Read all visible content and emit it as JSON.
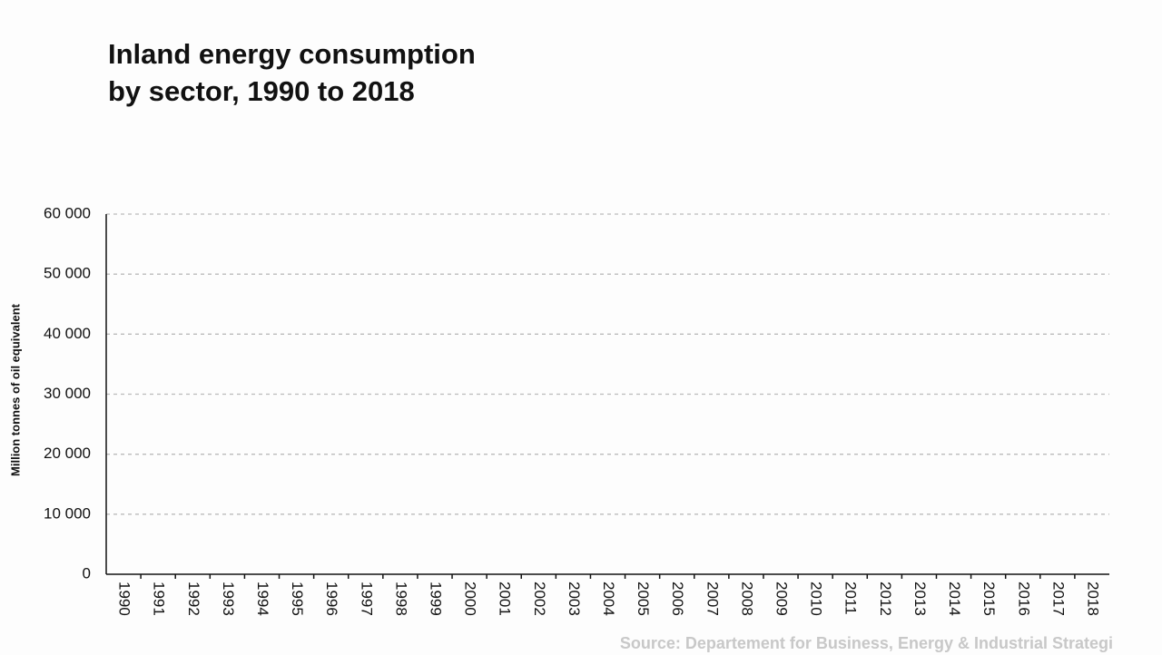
{
  "chart_data": {
    "type": "line",
    "title": [
      "Inland energy consumption",
      "by sector, 1990 to 2018"
    ],
    "y_label": "Million tonnes of oil equivalent",
    "source": "Source: Departement for Business, Energy & Industrial Strategi",
    "categories": [
      "1990",
      "1991",
      "1992",
      "1993",
      "1994",
      "1995",
      "1996",
      "1997",
      "1998",
      "1999",
      "2000",
      "2001",
      "2002",
      "2003",
      "2004",
      "2005",
      "2006",
      "2007",
      "2008",
      "2009",
      "2010",
      "2011",
      "2012",
      "2013",
      "2014",
      "2015",
      "2016",
      "2017",
      "2018"
    ],
    "ylim": [
      0,
      60000
    ],
    "yticks": [
      0,
      {
        "value": 10000,
        "label": "10 000"
      },
      {
        "value": 20000,
        "label": "20 000"
      },
      {
        "value": 30000,
        "label": "30 000"
      },
      {
        "value": 40000,
        "label": "40 000"
      },
      {
        "value": 50000,
        "label": "50 000"
      },
      {
        "value": 60000,
        "label": "60 000"
      }
    ],
    "grid": true
  }
}
